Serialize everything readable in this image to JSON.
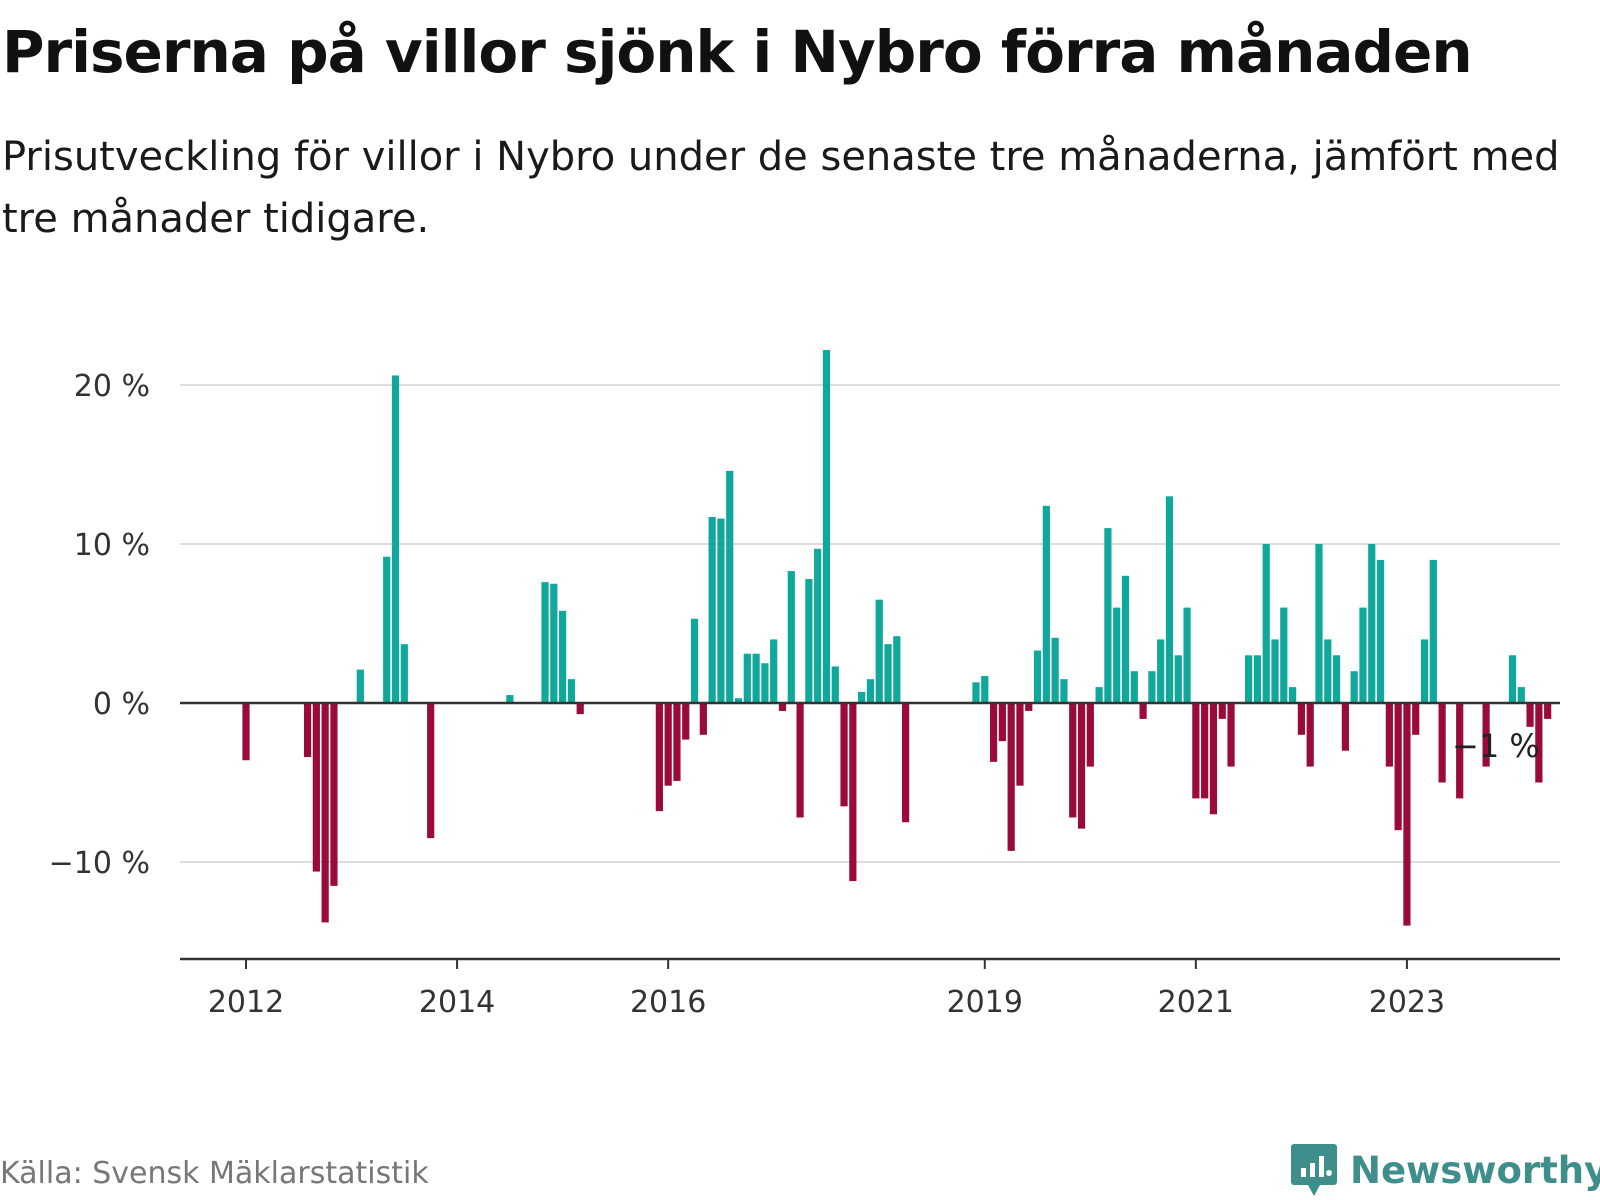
{
  "title": "Priserna på villor sjönk i Nybro förra månaden",
  "subtitle": "Prisutveckling för villor i Nybro under de senaste tre månaderna, jämfört med tre månader tidigare.",
  "source": "Källa: Svensk Mäklarstatistik",
  "brand": "Newsworthy",
  "colors": {
    "positive": "#0fa89b",
    "negative": "#9a0a3a",
    "grid": "#dddddd",
    "axis": "#333333",
    "brand": "#3e8f8b"
  },
  "chart_data": {
    "type": "bar",
    "title": "Priserna på villor sjönk i Nybro förra månaden",
    "xlabel": "",
    "ylabel": "",
    "unit": "%",
    "ylim": [
      -16,
      22
    ],
    "yticks": [
      {
        "value": 20,
        "label": "20 %"
      },
      {
        "value": 10,
        "label": "10 %"
      },
      {
        "value": 0,
        "label": "0 %"
      },
      {
        "value": -10,
        "label": "−10 %"
      }
    ],
    "xticks": [
      {
        "index": 0,
        "label": "2012"
      },
      {
        "index": 24,
        "label": "2014"
      },
      {
        "index": 48,
        "label": "2016"
      },
      {
        "index": 84,
        "label": "2019"
      },
      {
        "index": 108,
        "label": "2021"
      },
      {
        "index": 132,
        "label": "2023"
      }
    ],
    "last_value_label": "−1 %",
    "series": [
      {
        "name": "Prisutveckling",
        "start": "2012-01",
        "values": [
          -3.6,
          null,
          null,
          null,
          null,
          null,
          null,
          -3.4,
          -10.6,
          -13.8,
          -11.5,
          null,
          null,
          2.1,
          null,
          null,
          9.2,
          20.6,
          3.7,
          null,
          null,
          -8.5,
          null,
          null,
          null,
          null,
          null,
          null,
          null,
          null,
          0.5,
          null,
          null,
          null,
          7.6,
          7.5,
          5.8,
          1.5,
          -0.7,
          null,
          null,
          null,
          null,
          null,
          null,
          null,
          null,
          -6.8,
          -5.2,
          -4.9,
          -2.3,
          5.3,
          -2.0,
          11.7,
          11.6,
          14.6,
          0.3,
          3.1,
          3.1,
          2.5,
          4.0,
          -0.5,
          8.3,
          -7.2,
          7.8,
          9.7,
          22.2,
          2.3,
          -6.5,
          -11.2,
          0.7,
          1.5,
          6.5,
          3.7,
          4.2,
          -7.5,
          null,
          null,
          null,
          null,
          null,
          null,
          null,
          1.3,
          1.7,
          -3.7,
          -2.4,
          -9.3,
          -5.2,
          -0.5,
          3.3,
          12.4,
          4.1,
          1.5,
          -7.2,
          -7.9,
          -4.0,
          1.0,
          11.0,
          6.0,
          8.0,
          2.0,
          -1.0,
          2.0,
          4.0,
          13.0,
          3.0,
          6.0,
          -6.0,
          -6.0,
          -7.0,
          -1.0,
          -4.0,
          null,
          3.0,
          3.0,
          10.0,
          4.0,
          6.0,
          1.0,
          -2.0,
          -4.0,
          10.0,
          4.0,
          3.0,
          -3.0,
          2.0,
          6.0,
          10.0,
          9.0,
          -4.0,
          -8.0,
          -14.0,
          -2.0,
          4.0,
          9.0,
          -5.0,
          null,
          -6.0,
          null,
          null,
          -4.0,
          null,
          null,
          3.0,
          1.0,
          -1.5,
          -5.0,
          -1.0
        ]
      }
    ]
  }
}
